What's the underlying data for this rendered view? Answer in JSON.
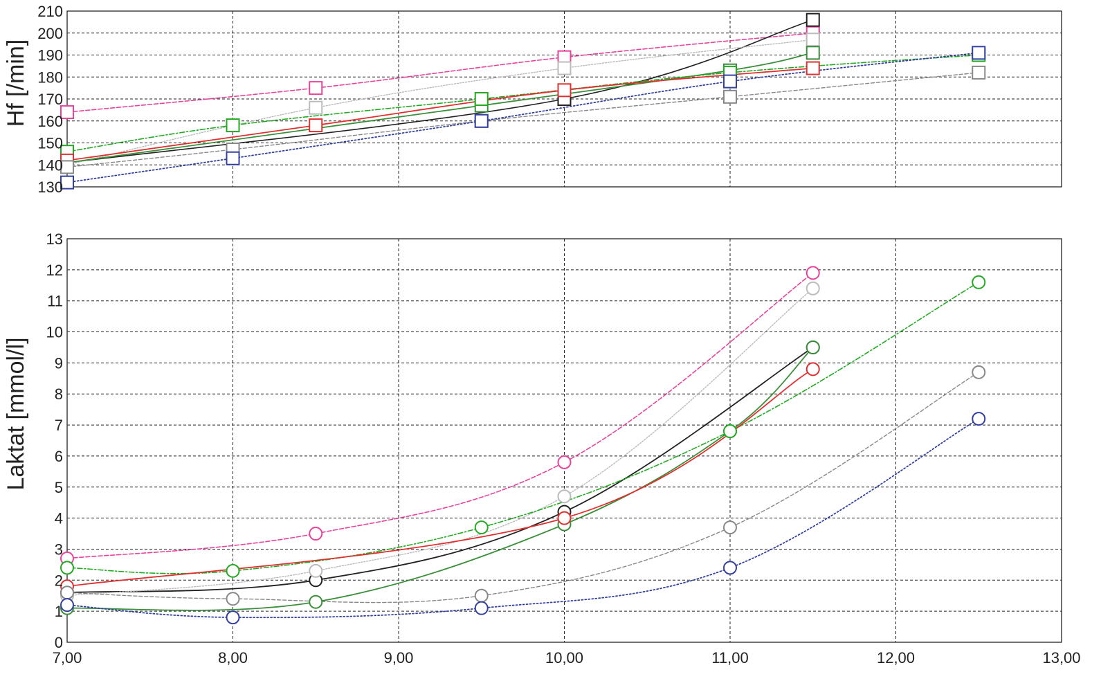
{
  "chart_data": [
    {
      "id": "hf",
      "type": "line",
      "title": "",
      "xlabel": "",
      "ylabel": "Hf [/min]",
      "xlim": [
        7,
        13
      ],
      "ylim": [
        130,
        210
      ],
      "x_ticks": [
        7,
        8,
        9,
        10,
        11,
        12,
        13
      ],
      "y_ticks": [
        130,
        140,
        150,
        160,
        170,
        180,
        190,
        200,
        210
      ],
      "y_tick_labels": [
        "130",
        "140",
        "150",
        "160",
        "170",
        "180",
        "190",
        "200",
        "210"
      ],
      "grid": true,
      "marker": "square",
      "series": [
        {
          "color": "#e8439a",
          "dash": "6,3",
          "width": 1.6,
          "x": [
            7,
            8.5,
            10,
            11.5
          ],
          "y": [
            164,
            175,
            189,
            200
          ]
        },
        {
          "color": "#222222",
          "dash": "",
          "width": 1.6,
          "x": [
            7,
            10,
            11.5
          ],
          "y": [
            141,
            170,
            206
          ]
        },
        {
          "color": "#bbbbbb",
          "dash": "2,2",
          "width": 1.4,
          "x": [
            7,
            8.5,
            10,
            11.5
          ],
          "y": [
            140,
            166,
            184,
            197
          ]
        },
        {
          "color": "#3a8f3a",
          "dash": "",
          "width": 1.8,
          "x": [
            7,
            9.5,
            11,
            11.5
          ],
          "y": [
            141,
            167,
            183,
            191
          ]
        },
        {
          "color": "#22aa22",
          "dash": "7,3,2,3",
          "width": 1.6,
          "x": [
            7,
            8,
            9.5,
            11,
            12.5
          ],
          "y": [
            146,
            158,
            170,
            182,
            190
          ]
        },
        {
          "color": "#e03030",
          "dash": "",
          "width": 1.8,
          "x": [
            7,
            8.5,
            10,
            11.5
          ],
          "y": [
            142,
            158,
            174,
            184
          ]
        },
        {
          "color": "#888888",
          "dash": "5,3",
          "width": 1.4,
          "x": [
            7,
            8,
            9.5,
            11,
            12.5
          ],
          "y": [
            139,
            147,
            160,
            171,
            182
          ]
        },
        {
          "color": "#3340a0",
          "dash": "2,3",
          "width": 1.8,
          "x": [
            7,
            8,
            9.5,
            11,
            12.5
          ],
          "y": [
            132,
            143,
            160,
            178,
            191
          ]
        }
      ]
    },
    {
      "id": "laktat",
      "type": "line",
      "title": "",
      "xlabel": "",
      "ylabel": "Laktat [mmol/l]",
      "xlim": [
        7,
        13
      ],
      "ylim": [
        0,
        13
      ],
      "x_ticks": [
        7,
        8,
        9,
        10,
        11,
        12,
        13
      ],
      "x_tick_labels": [
        "7,00",
        "8,00",
        "9,00",
        "10,00",
        "11,00",
        "12,00",
        "13,00"
      ],
      "y_ticks": [
        0,
        1,
        2,
        3,
        4,
        5,
        6,
        7,
        8,
        9,
        10,
        11,
        12,
        13
      ],
      "y_tick_labels": [
        "0",
        "1",
        "2",
        "3",
        "4",
        "5",
        "6",
        "7",
        "8",
        "9",
        "10",
        "11",
        "12",
        "13"
      ],
      "grid": true,
      "marker": "circle",
      "series": [
        {
          "color": "#e8439a",
          "dash": "6,3",
          "width": 1.6,
          "x": [
            7,
            8.5,
            10,
            11.5
          ],
          "y": [
            2.7,
            3.5,
            5.8,
            11.9
          ]
        },
        {
          "color": "#222222",
          "dash": "",
          "width": 1.8,
          "x": [
            7,
            8.5,
            10,
            11.5
          ],
          "y": [
            1.6,
            2.0,
            4.2,
            9.5
          ]
        },
        {
          "color": "#bbbbbb",
          "dash": "2,2",
          "width": 1.4,
          "x": [
            7,
            8.5,
            10,
            11.5
          ],
          "y": [
            1.5,
            2.3,
            4.7,
            11.4
          ]
        },
        {
          "color": "#3a8f3a",
          "dash": "",
          "width": 1.8,
          "x": [
            7,
            8.5,
            10,
            11,
            11.5
          ],
          "y": [
            1.1,
            1.3,
            3.8,
            6.8,
            9.5
          ]
        },
        {
          "color": "#22aa22",
          "dash": "7,3,2,3",
          "width": 1.6,
          "x": [
            7,
            8,
            9.5,
            11,
            12.5
          ],
          "y": [
            2.4,
            2.3,
            3.7,
            6.8,
            11.6
          ]
        },
        {
          "color": "#e03030",
          "dash": "",
          "width": 1.8,
          "x": [
            7,
            10,
            11.5
          ],
          "y": [
            1.8,
            4.0,
            8.8
          ]
        },
        {
          "color": "#888888",
          "dash": "5,3",
          "width": 1.4,
          "x": [
            7,
            8,
            9.5,
            11,
            12.5
          ],
          "y": [
            1.6,
            1.4,
            1.5,
            3.7,
            8.7
          ]
        },
        {
          "color": "#3340a0",
          "dash": "2,3",
          "width": 1.8,
          "x": [
            7,
            8,
            9.5,
            11,
            12.5
          ],
          "y": [
            1.2,
            0.8,
            1.1,
            2.4,
            7.2
          ]
        }
      ]
    }
  ]
}
